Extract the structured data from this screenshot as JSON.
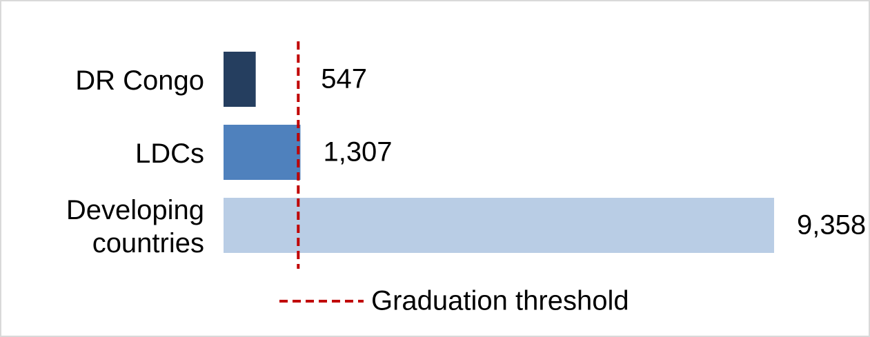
{
  "chart_data": {
    "type": "hbar",
    "categories": [
      "DR Congo",
      "LDCs",
      "Developing countries"
    ],
    "values": [
      547,
      1307,
      9358
    ],
    "value_labels": [
      "547",
      "1,307",
      "9,358"
    ],
    "colors": [
      "#253e5f",
      "#4f81bd",
      "#b9cde5"
    ],
    "xlim": [
      0,
      9358
    ],
    "threshold": {
      "name": "Graduation threshold",
      "value": 1270,
      "color": "#c00000"
    }
  }
}
